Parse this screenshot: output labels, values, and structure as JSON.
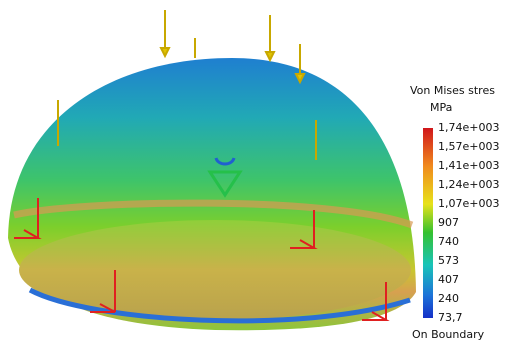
{
  "legend": {
    "title": "Von Mises stres",
    "unit": "MPa",
    "labels": [
      "1,74e+003",
      "1,57e+003",
      "1,41e+003",
      "1,24e+003",
      "1,07e+003",
      "907",
      "740",
      "573",
      "407",
      "240",
      "73,7"
    ],
    "footer": "On Boundary"
  }
}
